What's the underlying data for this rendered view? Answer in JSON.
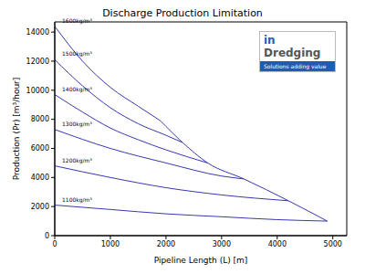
{
  "chart_data": {
    "type": "line",
    "title": "Discharge Production Limitation",
    "x_label": "Pipeline Length (L) [m]",
    "y_label": "Production (Pr) [m³/hour]",
    "logo_text": [
      "in",
      "Dredging",
      "Solutions adding value"
    ],
    "xlim": [
      0,
      5250
    ],
    "xticks": [
      0,
      1000,
      2000,
      3000,
      4000,
      5000
    ],
    "ylim": [
      0,
      14700
    ],
    "yticks": [
      0,
      2000,
      4000,
      6000,
      8000,
      10000,
      12000,
      14000
    ],
    "grid": false,
    "series": [
      {
        "name": "1600kg/m³",
        "color": "#3838b0",
        "x": [
          0,
          500,
          1000,
          1500,
          1900
        ],
        "values": [
          14400,
          12000,
          10200,
          8900,
          7900
        ]
      },
      {
        "name": "1500kg/m³",
        "color": "#3838b0",
        "x": [
          0,
          500,
          1000,
          1500,
          2000,
          2300
        ],
        "values": [
          12100,
          10300,
          8800,
          7700,
          6900,
          6400
        ]
      },
      {
        "name": "1400kg/m³",
        "color": "#3838b0",
        "x": [
          0,
          500,
          1000,
          1500,
          2000,
          2750
        ],
        "values": [
          9700,
          8500,
          7400,
          6600,
          5900,
          5000
        ]
      },
      {
        "name": "1300kg/m³",
        "color": "#3838b0",
        "x": [
          0,
          1000,
          2000,
          3000,
          3400
        ],
        "values": [
          7300,
          6000,
          5000,
          4100,
          3900
        ]
      },
      {
        "name": "1200kg/m³",
        "color": "#3838b0",
        "x": [
          0,
          1000,
          2000,
          3000,
          4200
        ],
        "values": [
          4800,
          4000,
          3300,
          2800,
          2400
        ]
      },
      {
        "name": "1100kg/m³",
        "color": "#3838b0",
        "x": [
          0,
          1000,
          2000,
          3000,
          4000,
          4900
        ],
        "values": [
          2100,
          1800,
          1500,
          1300,
          1100,
          1000
        ]
      },
      {
        "color": "#3838b0",
        "x": [
          1900,
          2300,
          2750,
          3400,
          4200,
          4900
        ],
        "values": [
          7900,
          6400,
          5000,
          3900,
          2400,
          1000
        ]
      }
    ]
  }
}
